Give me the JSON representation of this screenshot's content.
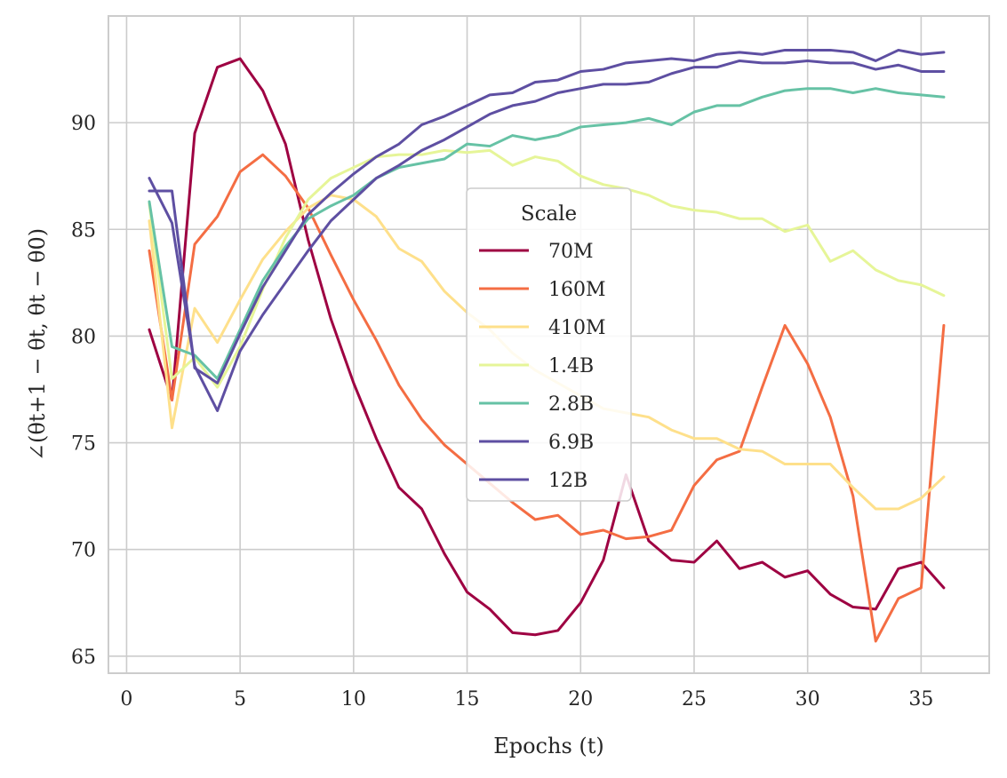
{
  "chart_data": {
    "type": "line",
    "title": "",
    "xlabel": "Epochs (t)",
    "ylabel": "∠(θt+1 − θt, θt − θ0)",
    "xlim": [
      -0.8,
      38.0
    ],
    "ylim": [
      64.2,
      95.0
    ],
    "xticks": [
      0,
      5,
      10,
      15,
      20,
      25,
      30,
      35
    ],
    "yticks": [
      65,
      70,
      75,
      80,
      85,
      90
    ],
    "grid": true,
    "legend": {
      "title": "Scale",
      "placement": "center"
    },
    "x": [
      1,
      2,
      3,
      4,
      5,
      6,
      7,
      8,
      9,
      10,
      11,
      12,
      13,
      14,
      15,
      16,
      17,
      18,
      19,
      20,
      21,
      22,
      23,
      24,
      25,
      26,
      27,
      28,
      29,
      30,
      31,
      32,
      33,
      34,
      35,
      36
    ],
    "series": [
      {
        "name": "70M",
        "color": "#9e0142",
        "values": [
          80.3,
          77.0,
          89.5,
          92.6,
          93.0,
          91.5,
          89.0,
          84.5,
          80.8,
          77.8,
          75.2,
          72.9,
          71.9,
          69.8,
          68.0,
          67.2,
          66.1,
          66.0,
          66.2,
          67.5,
          69.5,
          73.5,
          70.4,
          69.5,
          69.4,
          70.4,
          69.1,
          69.4,
          68.7,
          69.0,
          67.9,
          67.3,
          67.2,
          69.1,
          69.4,
          68.2
        ]
      },
      {
        "name": "160M",
        "color": "#f46d43",
        "values": [
          84.0,
          77.0,
          84.3,
          85.6,
          87.7,
          88.5,
          87.5,
          86.0,
          83.8,
          81.7,
          79.8,
          77.7,
          76.1,
          74.9,
          74.0,
          73.1,
          72.2,
          71.4,
          71.6,
          70.7,
          70.9,
          70.5,
          70.6,
          70.9,
          73.0,
          74.2,
          74.6,
          77.6,
          80.5,
          78.7,
          76.2,
          72.5,
          65.7,
          67.7,
          68.2,
          80.5
        ]
      },
      {
        "name": "410M",
        "color": "#fee08b",
        "values": [
          85.4,
          75.7,
          81.3,
          79.7,
          81.7,
          83.6,
          84.9,
          86.0,
          86.6,
          86.4,
          85.6,
          84.1,
          83.5,
          82.1,
          81.1,
          80.3,
          79.2,
          78.4,
          77.8,
          77.2,
          76.6,
          76.4,
          76.2,
          75.6,
          75.2,
          75.2,
          74.7,
          74.6,
          74.0,
          74.0,
          74.0,
          72.9,
          71.9,
          71.9,
          72.4,
          73.4
        ]
      },
      {
        "name": "1.4B",
        "color": "#e6f598",
        "values": [
          86.2,
          78.0,
          79.0,
          77.6,
          79.5,
          82.2,
          84.6,
          86.4,
          87.4,
          87.9,
          88.4,
          88.5,
          88.5,
          88.7,
          88.6,
          88.7,
          88.0,
          88.4,
          88.2,
          87.5,
          87.1,
          86.9,
          86.6,
          86.1,
          85.9,
          85.8,
          85.5,
          85.5,
          84.9,
          85.2,
          83.5,
          84.0,
          83.1,
          82.6,
          82.4,
          81.9
        ]
      },
      {
        "name": "2.8B",
        "color": "#66c2a5",
        "values": [
          86.3,
          79.5,
          79.1,
          78.0,
          80.3,
          82.6,
          84.2,
          85.5,
          86.1,
          86.6,
          87.4,
          87.9,
          88.1,
          88.3,
          89.0,
          88.9,
          89.4,
          89.2,
          89.4,
          89.8,
          89.9,
          90.0,
          90.2,
          89.9,
          90.5,
          90.8,
          90.8,
          91.2,
          91.5,
          91.6,
          91.6,
          91.4,
          91.6,
          91.4,
          91.3,
          91.2
        ]
      },
      {
        "name": "6.9B",
        "color": "#5e4fa2",
        "values": [
          87.4,
          85.3,
          78.6,
          76.5,
          79.3,
          81.0,
          82.5,
          84.0,
          85.4,
          86.4,
          87.4,
          88.0,
          88.7,
          89.2,
          89.8,
          90.4,
          90.8,
          91.0,
          91.4,
          91.6,
          91.8,
          91.8,
          91.9,
          92.3,
          92.6,
          92.6,
          92.9,
          92.8,
          92.8,
          92.9,
          92.8,
          92.8,
          92.5,
          92.7,
          92.4,
          92.4
        ]
      },
      {
        "name": "12B",
        "color": "#5e4fa2",
        "values": [
          86.8,
          86.8,
          78.5,
          77.8,
          80.1,
          82.3,
          84.0,
          85.7,
          86.7,
          87.6,
          88.4,
          89.0,
          89.9,
          90.3,
          90.8,
          91.3,
          91.4,
          91.9,
          92.0,
          92.4,
          92.5,
          92.8,
          92.9,
          93.0,
          92.9,
          93.2,
          93.3,
          93.2,
          93.4,
          93.4,
          93.4,
          93.3,
          92.9,
          93.4,
          93.2,
          93.3
        ]
      }
    ]
  }
}
